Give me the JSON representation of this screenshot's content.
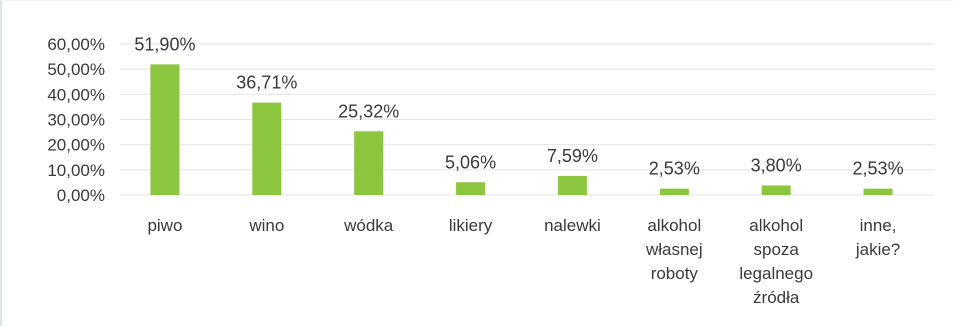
{
  "chart_data": {
    "type": "bar",
    "categories": [
      [
        "piwo"
      ],
      [
        "wino"
      ],
      [
        "wódka"
      ],
      [
        "likiery"
      ],
      [
        "nalewki"
      ],
      [
        "alkohol",
        "własnej",
        "roboty"
      ],
      [
        "alkohol",
        "spoza",
        "legalnego",
        "źródła"
      ],
      [
        "inne,",
        "jakie?"
      ]
    ],
    "values": [
      51.9,
      36.71,
      25.32,
      5.06,
      7.59,
      2.53,
      3.8,
      2.53
    ],
    "data_labels": [
      "51,90%",
      "36,71%",
      "25,32%",
      "5,06%",
      "7,59%",
      "2,53%",
      "3,80%",
      "2,53%"
    ],
    "y_ticks": [
      0,
      10,
      20,
      30,
      40,
      50,
      60
    ],
    "y_tick_labels": [
      "0,00%",
      "10,00%",
      "20,00%",
      "30,00%",
      "40,00%",
      "50,00%",
      "60,00%"
    ],
    "ylim": [
      0,
      60
    ],
    "grid": true,
    "legend": "none",
    "colors": {
      "bar": "#8cc63f",
      "grid": "#e4e4e4",
      "text": "#3a3a3a"
    }
  }
}
